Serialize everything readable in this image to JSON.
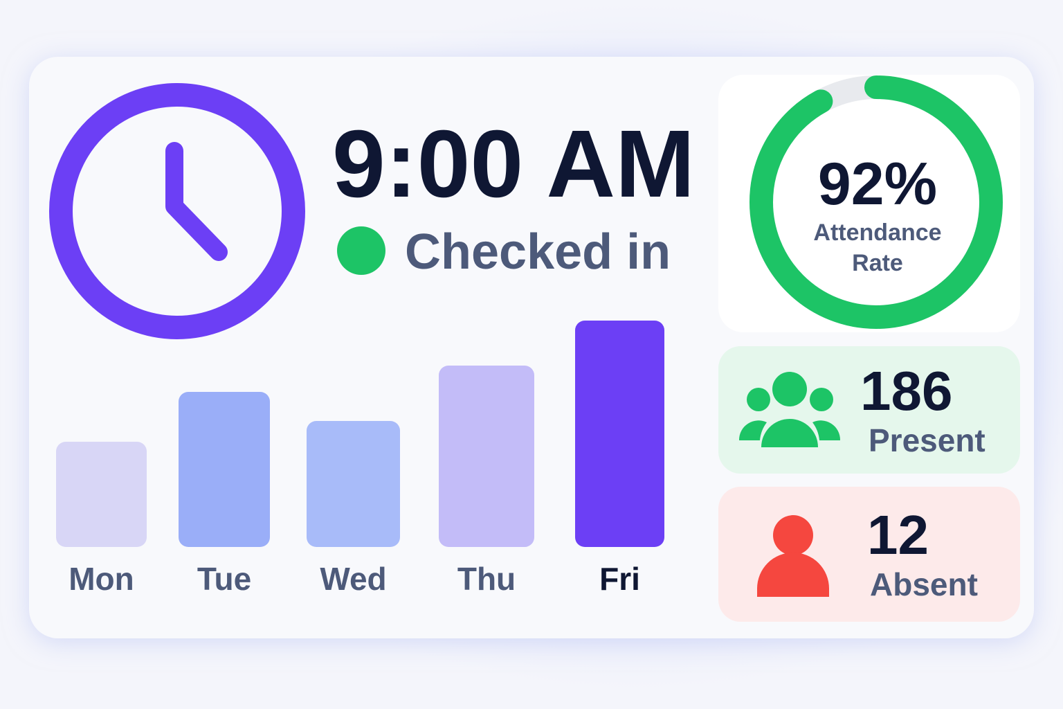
{
  "clock": {
    "time": "9:00 AM",
    "status": "Checked in"
  },
  "chart_data": [
    {
      "type": "bar",
      "categories": [
        "Mon",
        "Tue",
        "Wed",
        "Thu",
        "Fri"
      ],
      "values": [
        152,
        224,
        182,
        262,
        327
      ],
      "colors": [
        "#d8d6f6",
        "#9aaef8",
        "#a8bbf9",
        "#c3bcf8",
        "#6c3ff5"
      ],
      "label_colors": [
        "#4d5a7a",
        "#4d5a7a",
        "#4d5a7a",
        "#4d5a7a",
        "#0f1733"
      ]
    },
    {
      "type": "gauge",
      "values": [
        92
      ],
      "value_labels": [
        "92%"
      ],
      "label": "Attendance Rate",
      "color": "#1dc466",
      "track_color": "#e8eaee"
    }
  ],
  "stats": [
    {
      "value": 186,
      "label": "Present"
    },
    {
      "value": 12,
      "label": "Absent"
    }
  ]
}
